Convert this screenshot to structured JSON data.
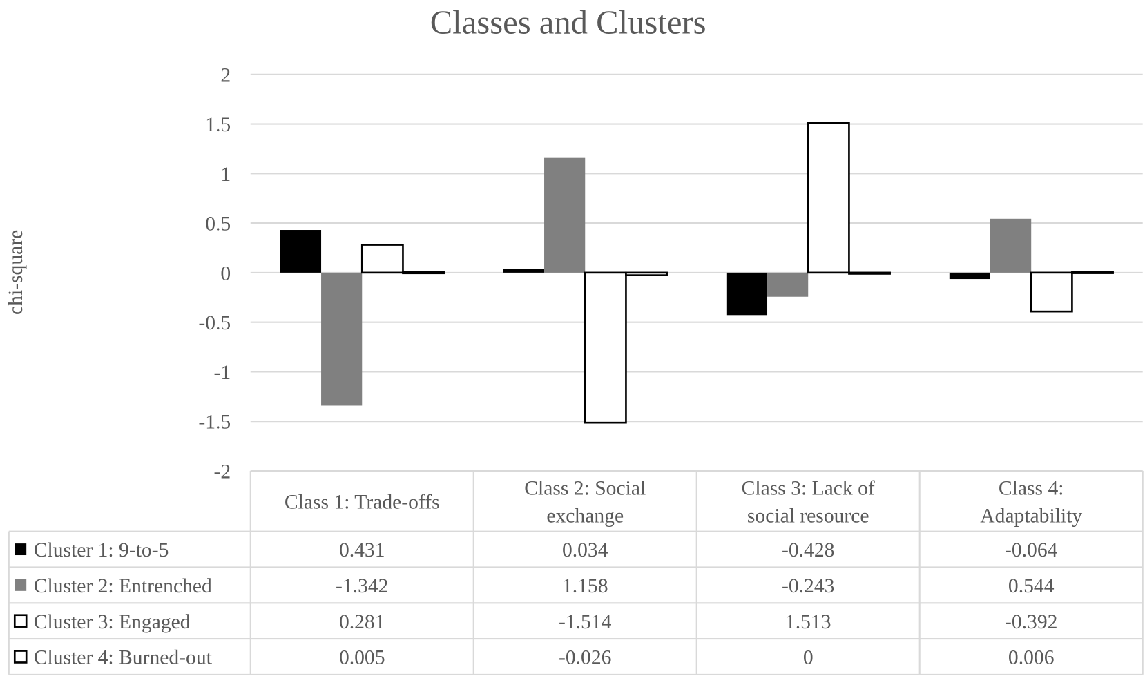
{
  "chart_data": {
    "type": "bar",
    "title": "Classes and Clusters",
    "xlabel": "",
    "ylabel": "chi-square",
    "ylim": [
      -2,
      2
    ],
    "yticks": [
      "2",
      "1.5",
      "1",
      "0.5",
      "0",
      "-0.5",
      "-1",
      "-1.5",
      "-2"
    ],
    "grid": true,
    "legend": "data-table-left",
    "categories": [
      "Class 1: Trade-offs",
      "Class 2: Social exchange",
      "Class 3: Lack of social resource",
      "Class 4: Adaptability"
    ],
    "category_lines": [
      [
        "Class 1: Trade-offs"
      ],
      [
        "Class 2: Social",
        "exchange"
      ],
      [
        "Class 3: Lack of",
        "social resource"
      ],
      [
        "Class 4:",
        "Adaptability"
      ]
    ],
    "series": [
      {
        "name": "Cluster 1: 9-to-5",
        "values": [
          0.431,
          0.034,
          -0.428,
          -0.064
        ],
        "labels": [
          "0.431",
          "0.034",
          "-0.428",
          "-0.064"
        ],
        "fill": "#000000",
        "stroke": "#000000"
      },
      {
        "name": "Cluster 2: Entrenched",
        "values": [
          -1.342,
          1.158,
          -0.243,
          0.544
        ],
        "labels": [
          "-1.342",
          "1.158",
          "-0.243",
          "0.544"
        ],
        "fill": "#808080",
        "stroke": "#808080"
      },
      {
        "name": "Cluster 3: Engaged",
        "values": [
          0.281,
          -1.514,
          1.513,
          -0.392
        ],
        "labels": [
          "0.281",
          "-1.514",
          "1.513",
          "-0.392"
        ],
        "fill": "#ffffff",
        "stroke": "#000000"
      },
      {
        "name": "Cluster 4: Burned-out",
        "values": [
          0.005,
          -0.026,
          0,
          0.006
        ],
        "labels": [
          "0.005",
          "-0.026",
          "0",
          "0.006"
        ],
        "fill": "#ffffff",
        "stroke": "#000000"
      }
    ]
  }
}
